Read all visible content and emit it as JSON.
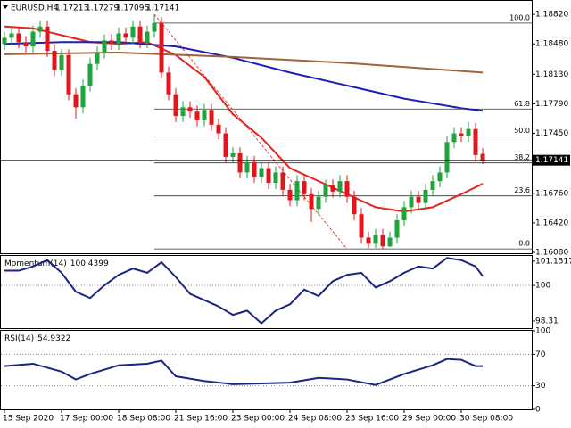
{
  "chart_data": [
    {
      "type": "candlestick",
      "title": "EURUSD,H4",
      "categories": [
        "15 Sep 2020",
        null,
        null,
        null,
        null,
        null,
        null,
        null,
        "17 Sep 00:00",
        null,
        null,
        null,
        null,
        null,
        null,
        null,
        "18 Sep 08:00",
        null,
        null,
        null,
        null,
        null,
        null,
        null,
        "21 Sep 16:00",
        null,
        null,
        null,
        null,
        null,
        null,
        null,
        "23 Sep 00:00",
        null,
        null,
        null,
        null,
        null,
        null,
        null,
        "24 Sep 08:00",
        null,
        null,
        null,
        null,
        null,
        null,
        null,
        "25 Sep 16:00",
        null,
        null,
        null,
        null,
        null,
        null,
        null,
        "29 Sep 00:00",
        null,
        null,
        null,
        null,
        null,
        null,
        null,
        "30 Sep 08:00",
        null,
        null,
        null
      ],
      "open": [
        1.1848,
        1.1855,
        1.186,
        1.185,
        1.1845,
        1.1862,
        1.1868,
        1.184,
        1.1818,
        1.1835,
        1.179,
        1.1775,
        1.18,
        1.1825,
        1.1838,
        1.1852,
        1.1848,
        1.186,
        1.1855,
        1.1868,
        1.185,
        1.1862,
        1.1872,
        1.1815,
        1.179,
        1.1765,
        1.1775,
        1.177,
        1.176,
        1.1772,
        1.1755,
        1.1745,
        1.1718,
        1.1722,
        1.17,
        1.1712,
        1.1695,
        1.1705,
        1.1688,
        1.17,
        1.168,
        1.1668,
        1.169,
        1.1675,
        1.1658,
        1.1672,
        1.1685,
        1.1678,
        1.169,
        1.1672,
        1.1652,
        1.1625,
        1.1618,
        1.1628,
        1.1615,
        1.1625,
        1.1645,
        1.166,
        1.1672,
        1.1665,
        1.168,
        1.169,
        1.17,
        1.1735,
        1.1745,
        1.1742,
        1.175,
        1.17213
      ],
      "high": [
        1.1862,
        1.1867,
        1.1867,
        1.1857,
        1.1869,
        1.1875,
        1.1875,
        1.1847,
        1.1842,
        1.1842,
        1.1797,
        1.1807,
        1.1832,
        1.1845,
        1.1859,
        1.1859,
        1.1867,
        1.1867,
        1.1875,
        1.1875,
        1.1869,
        1.1882,
        1.1879,
        1.1822,
        1.1797,
        1.1782,
        1.1782,
        1.1777,
        1.1779,
        1.1779,
        1.1762,
        1.1752,
        1.1729,
        1.1729,
        1.1719,
        1.1719,
        1.1712,
        1.1712,
        1.1707,
        1.1707,
        1.1687,
        1.1697,
        1.1697,
        1.1682,
        1.1679,
        1.1692,
        1.1692,
        1.1697,
        1.1697,
        1.1679,
        1.1659,
        1.1632,
        1.1635,
        1.1635,
        1.1632,
        1.1652,
        1.1667,
        1.1679,
        1.1679,
        1.1687,
        1.1697,
        1.1707,
        1.1742,
        1.1752,
        1.1752,
        1.1758,
        1.1757,
        1.17279
      ],
      "low": [
        1.1841,
        1.1848,
        1.1843,
        1.1838,
        1.1838,
        1.1855,
        1.1833,
        1.1811,
        1.1811,
        1.1783,
        1.1762,
        1.1768,
        1.1793,
        1.1818,
        1.1831,
        1.1841,
        1.1841,
        1.1848,
        1.1848,
        1.1843,
        1.1843,
        1.1855,
        1.1808,
        1.1783,
        1.1758,
        1.1758,
        1.1763,
        1.1753,
        1.1753,
        1.1748,
        1.1738,
        1.1711,
        1.1711,
        1.1693,
        1.1693,
        1.1688,
        1.1688,
        1.1681,
        1.1681,
        1.1673,
        1.1661,
        1.1661,
        1.1668,
        1.1643,
        1.1651,
        1.1665,
        1.1671,
        1.1671,
        1.1665,
        1.1645,
        1.1618,
        1.1613,
        1.1613,
        1.1612,
        1.1614,
        1.1618,
        1.1638,
        1.1653,
        1.1658,
        1.1658,
        1.1673,
        1.1683,
        1.1693,
        1.1728,
        1.1735,
        1.1735,
        1.1713,
        1.17095
      ],
      "close": [
        1.1855,
        1.186,
        1.185,
        1.1845,
        1.1862,
        1.1868,
        1.184,
        1.1818,
        1.1835,
        1.179,
        1.1775,
        1.18,
        1.1825,
        1.1838,
        1.1852,
        1.1848,
        1.186,
        1.1855,
        1.1868,
        1.185,
        1.1862,
        1.1872,
        1.1815,
        1.179,
        1.1765,
        1.1775,
        1.177,
        1.176,
        1.1772,
        1.1755,
        1.1745,
        1.1718,
        1.1722,
        1.17,
        1.1712,
        1.1695,
        1.1705,
        1.1688,
        1.17,
        1.168,
        1.1668,
        1.169,
        1.1675,
        1.1658,
        1.1672,
        1.1685,
        1.1678,
        1.169,
        1.1672,
        1.1652,
        1.1625,
        1.1618,
        1.1628,
        1.1615,
        1.1625,
        1.1645,
        1.166,
        1.1672,
        1.1665,
        1.168,
        1.169,
        1.17,
        1.1735,
        1.1745,
        1.1742,
        1.175,
        1.172,
        1.17141
      ],
      "up_color": "#1fa33a",
      "down_color": "#e3151a",
      "ylim": [
        1.1607,
        1.18975
      ],
      "yticks": [
        {
          "value": 1.1882,
          "label": "1.18820"
        },
        {
          "value": 1.1848,
          "label": "1.18480"
        },
        {
          "value": 1.1813,
          "label": "1.18130"
        },
        {
          "value": 1.1779,
          "label": "1.17790"
        },
        {
          "value": 1.1745,
          "label": "1.17450"
        },
        {
          "value": 1.1676,
          "label": "1.16760"
        },
        {
          "value": 1.1642,
          "label": "1.16420"
        },
        {
          "value": 1.1608,
          "label": "1.16080"
        }
      ],
      "moving_averages": [
        {
          "color": "#e3251f",
          "x": [
            0,
            4,
            8,
            12,
            16,
            20,
            24,
            28,
            32,
            36,
            40,
            44,
            48,
            52,
            56,
            60,
            64,
            67
          ],
          "values": [
            1.1868,
            1.1866,
            1.1858,
            1.185,
            1.1848,
            1.185,
            1.1835,
            1.181,
            1.1767,
            1.174,
            1.1705,
            1.169,
            1.1675,
            1.166,
            1.1655,
            1.166,
            1.1675,
            1.1687
          ]
        },
        {
          "color": "#1f1fb4",
          "x": [
            0,
            8,
            16,
            24,
            32,
            40,
            48,
            56,
            64,
            67
          ],
          "values": [
            1.1848,
            1.185,
            1.185,
            1.1845,
            1.1832,
            1.1815,
            1.18,
            1.1785,
            1.1774,
            1.1771
          ]
        },
        {
          "color": "#a0623c",
          "x": [
            0,
            16,
            32,
            48,
            67
          ],
          "values": [
            1.1836,
            1.1838,
            1.1833,
            1.1826,
            1.1815
          ]
        }
      ],
      "fibonacci": {
        "start": 21,
        "color": "#333333",
        "levels": [
          {
            "value": 1.1872,
            "label": "100.0"
          },
          {
            "value": 1.1773,
            "label": "61.8"
          },
          {
            "value": 1.1742,
            "label": "50.0"
          },
          {
            "value": 1.1711,
            "label": "38.2"
          },
          {
            "value": 1.1673,
            "label": "23.6"
          },
          {
            "value": 1.1612,
            "label": "0.0"
          }
        ]
      },
      "trendline": {
        "color": "#e3151a",
        "x": [
          21,
          48
        ],
        "values": [
          1.1882,
          1.1612
        ]
      }
    },
    {
      "type": "line",
      "title": "Momentum(14)",
      "color": "#1a2380",
      "x": [
        0,
        2,
        4,
        6,
        8,
        10,
        12,
        14,
        16,
        18,
        20,
        22,
        24,
        26,
        28,
        30,
        32,
        34,
        36,
        38,
        40,
        42,
        44,
        46,
        48,
        50,
        52,
        54,
        56,
        58,
        60,
        62,
        64,
        66,
        67
      ],
      "values": [
        100.7,
        100.7,
        100.9,
        101.2,
        100.6,
        99.7,
        99.4,
        100.0,
        100.5,
        100.8,
        100.6,
        101.1,
        100.4,
        99.6,
        99.3,
        99.0,
        98.6,
        98.8,
        98.2,
        98.8,
        99.1,
        99.8,
        99.5,
        100.2,
        100.5,
        100.6,
        99.9,
        100.2,
        100.6,
        100.9,
        100.8,
        101.3,
        101.2,
        100.9,
        100.4399
      ],
      "ylim": [
        97.97,
        101.4
      ],
      "yticks": [
        101.1517,
        100,
        98.31
      ],
      "levels": [
        100
      ]
    },
    {
      "type": "line",
      "title": "RSI(14)",
      "color": "#1a2380",
      "x": [
        0,
        4,
        8,
        10,
        12,
        16,
        20,
        22,
        24,
        28,
        32,
        36,
        40,
        44,
        48,
        52,
        56,
        60,
        62,
        64,
        66,
        67
      ],
      "values": [
        55,
        58,
        48,
        38,
        45,
        56,
        58,
        62,
        42,
        36,
        32,
        33,
        34,
        40,
        38,
        31,
        45,
        56,
        64,
        63,
        55,
        54.9322
      ],
      "ylim": [
        0,
        100
      ],
      "yticks": [
        100,
        70,
        30,
        0
      ],
      "levels": [
        70,
        30
      ]
    }
  ]
}
